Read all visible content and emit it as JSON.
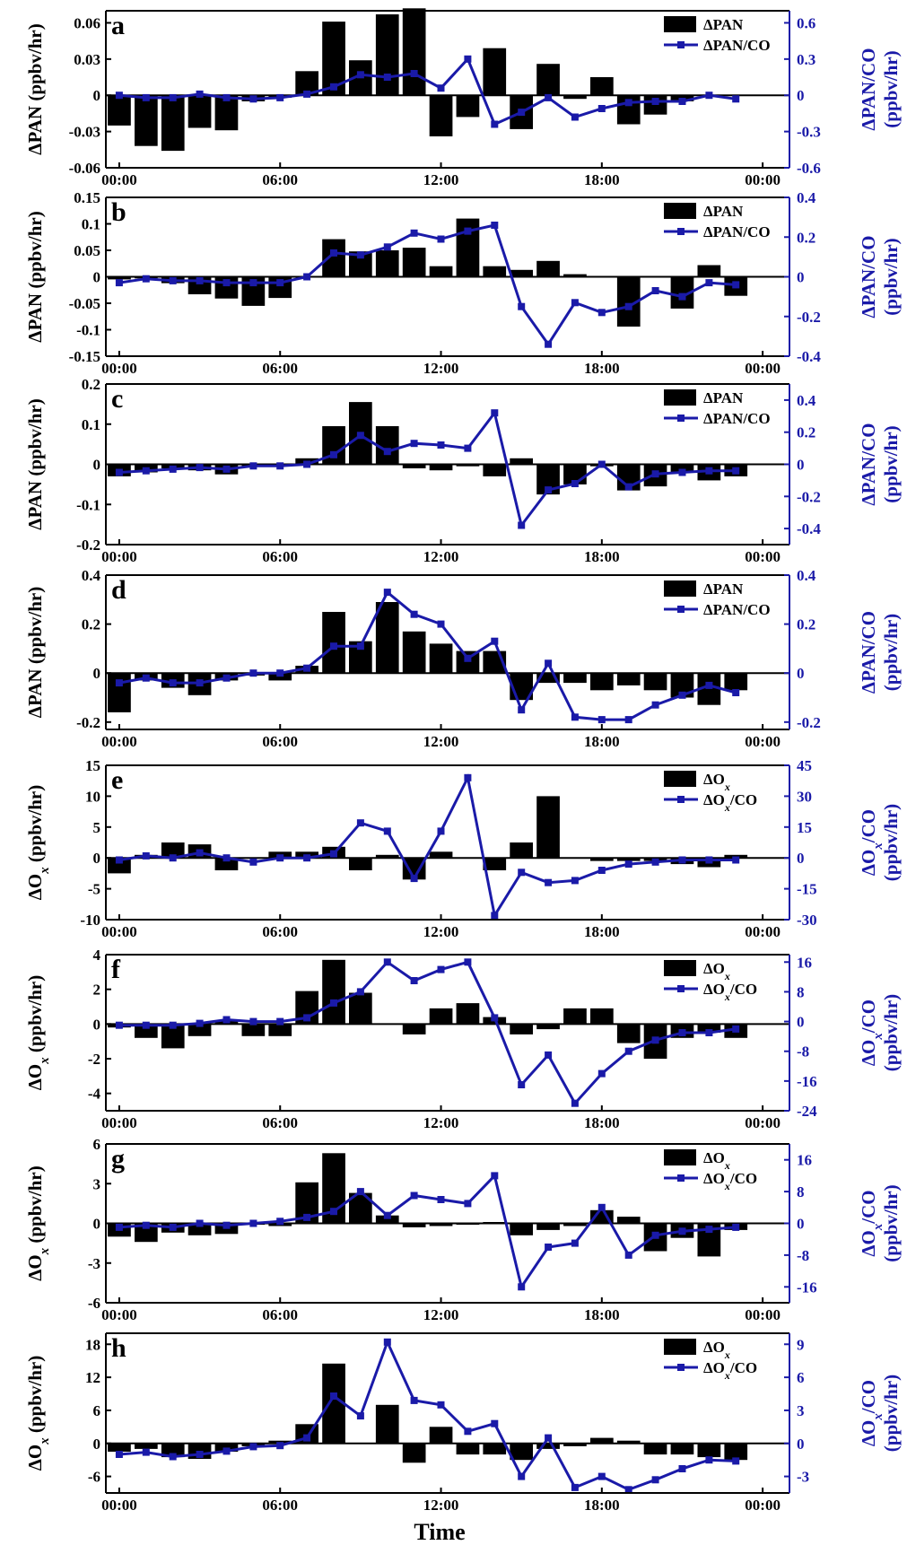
{
  "colors": {
    "bar": "#000000",
    "line": "#1a1aa8",
    "axis": "#000000",
    "right_axis": "#1a1aa8",
    "zero": "#000000"
  },
  "x_ticks": [
    "00:00",
    "06:00",
    "12:00",
    "18:00",
    "00:00"
  ],
  "x_label": "Time",
  "chart_data": [
    {
      "type": "bar+line",
      "panel": "a",
      "ylabel": "ΔPAN (ppbv/hr)",
      "ylabel_right": "ΔPAN/CO",
      "legend": [
        {
          "symbol": "ΔPAN"
        },
        {
          "symbol": "ΔPAN/CO"
        }
      ],
      "ylim": [
        -0.06,
        0.07
      ],
      "yticks": [
        -0.06,
        -0.03,
        0,
        0.03,
        0.06
      ],
      "ytick_labels": [
        "-0.06",
        "-0.03",
        "0",
        "0.03",
        "0.06"
      ],
      "ylim_right": [
        -0.6,
        0.7
      ],
      "yticks_right": [
        -0.6,
        -0.3,
        0,
        0.3,
        0.6
      ],
      "ytick_labels_right": [
        "-0.6",
        "-0.3",
        "0",
        "0.3",
        "0.6"
      ],
      "bars": [
        -0.025,
        -0.042,
        -0.046,
        -0.027,
        -0.029,
        -0.005,
        -0.002,
        0.02,
        0.061,
        0.029,
        0.067,
        0.072,
        -0.034,
        -0.018,
        0.039,
        -0.028,
        0.026,
        -0.003,
        0.015,
        -0.024,
        -0.016,
        -0.005,
        0.0,
        0.0
      ],
      "line": [
        0.0,
        -0.02,
        -0.02,
        0.01,
        -0.02,
        -0.03,
        -0.02,
        0.01,
        0.07,
        0.17,
        0.15,
        0.18,
        0.06,
        0.3,
        -0.24,
        -0.14,
        -0.02,
        -0.18,
        -0.11,
        -0.06,
        -0.05,
        -0.05,
        0.0,
        -0.03
      ]
    },
    {
      "type": "bar+line",
      "panel": "b",
      "ylabel": "ΔPAN (ppbv/hr)",
      "ylabel_right": "ΔPAN/CO",
      "legend": [
        {
          "symbol": "ΔPAN"
        },
        {
          "symbol": "ΔPAN/CO"
        }
      ],
      "ylim": [
        -0.15,
        0.15
      ],
      "yticks": [
        -0.15,
        -0.1,
        -0.05,
        0,
        0.05,
        0.1,
        0.15
      ],
      "ytick_labels": [
        "-0.15",
        "-0.1",
        "-0.05",
        "0",
        "0.05",
        "0.1",
        "0.15"
      ],
      "ylim_right": [
        -0.4,
        0.4
      ],
      "yticks_right": [
        -0.4,
        -0.2,
        0,
        0.2,
        0.4
      ],
      "ytick_labels_right": [
        "-0.4",
        "-0.2",
        "0",
        "0.2",
        "0.4"
      ],
      "bars": [
        -0.005,
        -0.003,
        -0.012,
        -0.033,
        -0.041,
        -0.055,
        -0.04,
        0.0,
        0.071,
        0.048,
        0.05,
        0.055,
        0.02,
        0.11,
        0.02,
        0.013,
        0.03,
        0.005,
        0.0,
        -0.094,
        0.0,
        -0.06,
        0.022,
        -0.036
      ],
      "line": [
        -0.03,
        -0.01,
        -0.02,
        -0.02,
        -0.03,
        -0.03,
        -0.03,
        0.0,
        0.12,
        0.11,
        0.15,
        0.22,
        0.19,
        0.23,
        0.26,
        -0.15,
        -0.34,
        -0.13,
        -0.18,
        -0.15,
        -0.07,
        -0.1,
        -0.03,
        -0.04
      ]
    },
    {
      "type": "bar+line",
      "panel": "c",
      "ylabel": "ΔPAN (ppbv/hr)",
      "ylabel_right": "ΔPAN/CO",
      "legend": [
        {
          "symbol": "ΔPAN"
        },
        {
          "symbol": "ΔPAN/CO"
        }
      ],
      "ylim": [
        -0.2,
        0.2
      ],
      "yticks": [
        -0.2,
        -0.1,
        0,
        0.1,
        0.2
      ],
      "ytick_labels": [
        "-0.2",
        "-0.1",
        "0",
        "0.1",
        "0.2"
      ],
      "ylim_right": [
        -0.5,
        0.5
      ],
      "yticks_right": [
        -0.4,
        -0.2,
        0,
        0.2,
        0.4
      ],
      "ytick_labels_right": [
        "-0.4",
        "-0.2",
        "0",
        "0.2",
        "0.4"
      ],
      "bars": [
        -0.03,
        -0.02,
        -0.01,
        -0.015,
        -0.025,
        -0.005,
        -0.005,
        0.015,
        0.095,
        0.155,
        0.095,
        -0.01,
        -0.015,
        -0.005,
        -0.03,
        0.015,
        -0.075,
        -0.05,
        -0.005,
        -0.065,
        -0.055,
        -0.02,
        -0.04,
        -0.03
      ],
      "line": [
        -0.05,
        -0.04,
        -0.03,
        -0.02,
        -0.03,
        -0.01,
        -0.01,
        0.0,
        0.06,
        0.18,
        0.08,
        0.13,
        0.12,
        0.1,
        0.32,
        -0.38,
        -0.16,
        -0.12,
        0.0,
        -0.14,
        -0.06,
        -0.05,
        -0.04,
        -0.04
      ]
    },
    {
      "type": "bar+line",
      "panel": "d",
      "ylabel": "ΔPAN (ppbv/hr)",
      "ylabel_right": "ΔPAN/CO",
      "legend": [
        {
          "symbol": "ΔPAN"
        },
        {
          "symbol": "ΔPAN/CO"
        }
      ],
      "ylim": [
        -0.23,
        0.4
      ],
      "yticks": [
        -0.2,
        0,
        0.2,
        0.4
      ],
      "ytick_labels": [
        "-0.2",
        "0",
        "0.2",
        "0.4"
      ],
      "ylim_right": [
        -0.23,
        0.4
      ],
      "yticks_right": [
        -0.2,
        0,
        0.2,
        0.4
      ],
      "ytick_labels_right": [
        "-0.2",
        "0",
        "0.2",
        "0.4"
      ],
      "bars": [
        -0.16,
        -0.03,
        -0.06,
        -0.09,
        -0.03,
        -0.01,
        -0.03,
        0.03,
        0.25,
        0.13,
        0.29,
        0.17,
        0.12,
        0.09,
        0.09,
        -0.11,
        -0.04,
        -0.04,
        -0.07,
        -0.05,
        -0.07,
        -0.1,
        -0.13,
        -0.07
      ],
      "line": [
        -0.04,
        -0.02,
        -0.04,
        -0.04,
        -0.02,
        0.0,
        0.0,
        0.02,
        0.11,
        0.11,
        0.33,
        0.24,
        0.2,
        0.06,
        0.13,
        -0.15,
        0.04,
        -0.18,
        -0.19,
        -0.19,
        -0.13,
        -0.09,
        -0.05,
        -0.08
      ]
    },
    {
      "type": "bar+line",
      "panel": "e",
      "ylabel": "ΔOx (ppbv/hr)",
      "ylabel_right": "ΔOx/CO",
      "legend": [
        {
          "symbol": "ΔOx"
        },
        {
          "symbol": "ΔOx/CO"
        }
      ],
      "ylim": [
        -10,
        15
      ],
      "yticks": [
        -10,
        -5,
        0,
        5,
        10,
        15
      ],
      "ytick_labels": [
        "-10",
        "-5",
        "0",
        "5",
        "10",
        "15"
      ],
      "ylim_right": [
        -30,
        45
      ],
      "yticks_right": [
        -30,
        -15,
        0,
        15,
        30,
        45
      ],
      "ytick_labels_right": [
        "-30",
        "-15",
        "0",
        "15",
        "30",
        "45"
      ],
      "bars": [
        -2.5,
        0.5,
        2.5,
        2.2,
        -2.0,
        0.0,
        1.0,
        1.0,
        1.8,
        -2.0,
        0.5,
        -3.5,
        1.0,
        0.0,
        -2.0,
        2.5,
        10.0,
        0.0,
        -0.5,
        -0.5,
        -0.5,
        -1.0,
        -1.5,
        0.5
      ],
      "line": [
        -1.0,
        1.0,
        0.0,
        2.5,
        0.0,
        -2.0,
        0.0,
        0.0,
        2.0,
        17.0,
        13.0,
        -10.0,
        13.0,
        39.0,
        -28.0,
        -7.0,
        -12.0,
        -11.0,
        -6.0,
        -3.0,
        -2.0,
        -1.0,
        -1.0,
        -1.0
      ]
    },
    {
      "type": "bar+line",
      "panel": "f",
      "ylabel": "ΔOx (ppbv/hr)",
      "ylabel_right": "ΔOx/CO",
      "legend": [
        {
          "symbol": "ΔOx"
        },
        {
          "symbol": "ΔOx/CO"
        }
      ],
      "ylim": [
        -5,
        4
      ],
      "yticks": [
        -4,
        -2,
        0,
        2,
        4
      ],
      "ytick_labels": [
        "-4",
        "-2",
        "0",
        "2",
        "4"
      ],
      "ylim_right": [
        -24,
        18
      ],
      "yticks_right": [
        -24,
        -16,
        -8,
        0,
        8,
        16
      ],
      "ytick_labels_right": [
        "-24",
        "-16",
        "-8",
        "0",
        "8",
        "16"
      ],
      "bars": [
        -0.2,
        -0.8,
        -1.4,
        -0.7,
        0.2,
        -0.7,
        -0.7,
        1.9,
        3.7,
        1.8,
        0.0,
        -0.6,
        0.9,
        1.2,
        0.4,
        -0.6,
        -0.3,
        0.9,
        0.9,
        -1.1,
        -2.0,
        -0.8,
        -0.5,
        -0.8
      ],
      "line": [
        -1.0,
        -1.0,
        -1.0,
        -0.5,
        0.5,
        0.0,
        0.0,
        1.0,
        5.0,
        8.0,
        16.0,
        11.0,
        14.0,
        16.0,
        1.0,
        -17.0,
        -9.0,
        -22.0,
        -14.0,
        -8.0,
        -5.0,
        -3.0,
        -3.0,
        -2.0
      ]
    },
    {
      "type": "bar+line",
      "panel": "g",
      "ylabel": "ΔOx (ppbv/hr)",
      "ylabel_right": "ΔOx/CO",
      "legend": [
        {
          "symbol": "ΔOx"
        },
        {
          "symbol": "ΔOx/CO"
        }
      ],
      "ylim": [
        -6,
        6
      ],
      "yticks": [
        -6,
        -3,
        0,
        3,
        6
      ],
      "ytick_labels": [
        "-6",
        "-3",
        "0",
        "3",
        "6"
      ],
      "ylim_right": [
        -20,
        20
      ],
      "yticks_right": [
        -16,
        -8,
        0,
        8,
        16
      ],
      "ytick_labels_right": [
        "-16",
        "-8",
        "0",
        "8",
        "16"
      ],
      "bars": [
        -1.0,
        -1.4,
        -0.7,
        -0.9,
        -0.8,
        -0.1,
        -0.2,
        3.1,
        5.3,
        2.3,
        0.6,
        -0.3,
        -0.2,
        -0.1,
        0.1,
        -0.9,
        -0.5,
        -0.2,
        1.0,
        0.5,
        -2.1,
        -1.1,
        -2.5,
        -0.5
      ],
      "line": [
        -1.0,
        -0.5,
        -1.0,
        0.0,
        -0.5,
        0.0,
        0.5,
        1.5,
        3.0,
        8.0,
        2.0,
        7.0,
        6.0,
        5.0,
        12.0,
        -16.0,
        -6.0,
        -5.0,
        4.0,
        -8.0,
        -3.0,
        -2.0,
        -1.5,
        -1.0
      ]
    },
    {
      "type": "bar+line",
      "panel": "h",
      "ylabel": "ΔOx (ppbv/hr)",
      "ylabel_right": "ΔOx/CO",
      "legend": [
        {
          "symbol": "ΔOx"
        },
        {
          "symbol": "ΔOx/CO"
        }
      ],
      "ylim": [
        -9,
        20
      ],
      "yticks": [
        -6,
        0,
        6,
        12,
        18
      ],
      "ytick_labels": [
        "-6",
        "0",
        "6",
        "12",
        "18"
      ],
      "ylim_right": [
        -4.5,
        10
      ],
      "yticks_right": [
        -3,
        0,
        3,
        6,
        9
      ],
      "ytick_labels_right": [
        "-3",
        "0",
        "3",
        "6",
        "9"
      ],
      "bars": [
        -1.5,
        -1.0,
        -2.5,
        -2.8,
        -1.5,
        -0.5,
        0.5,
        3.5,
        14.5,
        0.0,
        7.0,
        -3.5,
        3.0,
        -2.0,
        -2.0,
        -3.0,
        -1.0,
        -0.5,
        1.0,
        0.5,
        -2.0,
        -2.0,
        -2.5,
        -3.0
      ],
      "line": [
        -1.0,
        -0.8,
        -1.2,
        -1.0,
        -0.7,
        -0.3,
        -0.2,
        0.5,
        4.3,
        2.5,
        9.2,
        3.9,
        3.5,
        1.1,
        1.8,
        -3.0,
        0.5,
        -4.0,
        -3.0,
        -4.2,
        -3.3,
        -2.3,
        -1.5,
        -1.6
      ]
    }
  ]
}
